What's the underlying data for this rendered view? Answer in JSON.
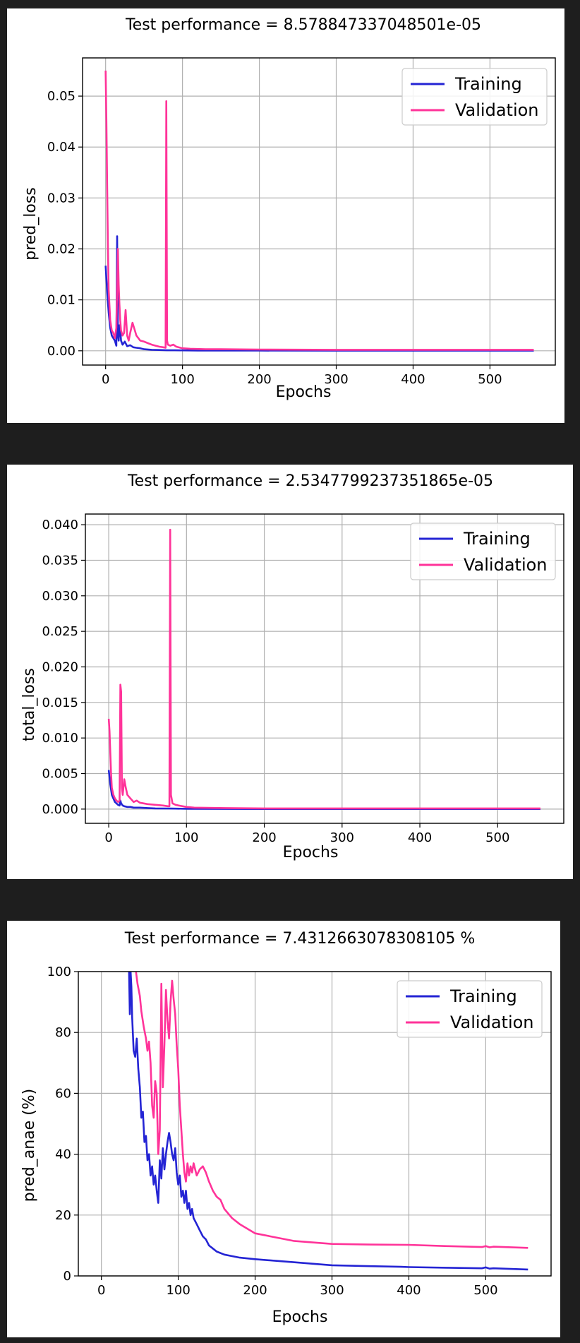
{
  "charts": [
    {
      "title": "Test performance = 8.578847337048501e-05",
      "xlabel": "Epochs",
      "ylabel": "pred_loss",
      "xticks": [
        "0",
        "100",
        "200",
        "300",
        "400",
        "500"
      ],
      "yticks": [
        "0.00",
        "0.01",
        "0.02",
        "0.03",
        "0.04",
        "0.05"
      ],
      "legend": [
        "Training",
        "Validation"
      ]
    },
    {
      "title": "Test performance = 2.5347799237351865e-05",
      "xlabel": "Epochs",
      "ylabel": "total_loss",
      "xticks": [
        "0",
        "100",
        "200",
        "300",
        "400",
        "500"
      ],
      "yticks": [
        "0.000",
        "0.005",
        "0.010",
        "0.015",
        "0.020",
        "0.025",
        "0.030",
        "0.035",
        "0.040"
      ],
      "legend": [
        "Training",
        "Validation"
      ]
    },
    {
      "title": "Test performance = 7.4312663078308105 %",
      "xlabel": "Epochs",
      "ylabel": "pred_anae (%)",
      "xticks": [
        "0",
        "100",
        "200",
        "300",
        "400",
        "500"
      ],
      "yticks": [
        "0",
        "20",
        "40",
        "60",
        "80",
        "100"
      ],
      "legend": [
        "Training",
        "Validation"
      ]
    }
  ],
  "colors": {
    "training": "#2424d4",
    "validation": "#ff3399",
    "grid": "#b0b0b0",
    "background": "#1e1e1e"
  },
  "chart_data": [
    {
      "type": "line",
      "title": "Test performance = 8.578847337048501e-05",
      "xlabel": "Epochs",
      "ylabel": "pred_loss",
      "xlim": [
        -30,
        585
      ],
      "ylim": [
        -0.0028,
        0.0575
      ],
      "xticks": [
        0,
        100,
        200,
        300,
        400,
        500
      ],
      "yticks": [
        0,
        0.01,
        0.02,
        0.03,
        0.04,
        0.05
      ],
      "grid": true,
      "legend": "top-right",
      "series": [
        {
          "name": "Training",
          "color": "#2424d4",
          "x": [
            0,
            2,
            4,
            6,
            8,
            10,
            12,
            14,
            15,
            16,
            17,
            18,
            19,
            20,
            22,
            25,
            28,
            32,
            36,
            40,
            45,
            50,
            60,
            70,
            80,
            90,
            100,
            120,
            150,
            200,
            300,
            400,
            500,
            557
          ],
          "y": [
            0.0167,
            0.0115,
            0.0075,
            0.0045,
            0.003,
            0.0025,
            0.002,
            0.001,
            0.0225,
            0.003,
            0.002,
            0.005,
            0.0045,
            0.002,
            0.0012,
            0.0018,
            0.0009,
            0.0011,
            0.0007,
            0.0006,
            0.0005,
            0.0003,
            0.0002,
            0.00015,
            0.0001,
            0.0001,
            8e-05,
            6e-05,
            5e-05,
            4e-05,
            3e-05,
            3e-05,
            3e-05,
            3e-05
          ]
        },
        {
          "name": "Validation",
          "color": "#ff3399",
          "x": [
            0,
            1,
            2,
            3,
            4,
            6,
            8,
            10,
            12,
            14,
            16,
            17,
            18,
            19,
            20,
            22,
            24,
            26,
            28,
            30,
            32,
            35,
            38,
            40,
            45,
            50,
            55,
            60,
            65,
            70,
            75,
            78,
            79,
            80,
            81,
            84,
            88,
            92,
            100,
            110,
            130,
            150,
            200,
            300,
            400,
            500,
            557
          ],
          "y": [
            0.055,
            0.045,
            0.032,
            0.02,
            0.012,
            0.006,
            0.004,
            0.0035,
            0.0025,
            0.0045,
            0.02,
            0.013,
            0.009,
            0.006,
            0.004,
            0.003,
            0.0035,
            0.008,
            0.003,
            0.002,
            0.0035,
            0.0055,
            0.004,
            0.003,
            0.002,
            0.0018,
            0.0015,
            0.0012,
            0.001,
            0.0008,
            0.0007,
            0.0006,
            0.049,
            0.002,
            0.0012,
            0.001,
            0.0012,
            0.0008,
            0.0005,
            0.0004,
            0.0003,
            0.0003,
            0.00025,
            0.0002,
            0.0002,
            0.0002,
            0.0002
          ]
        }
      ]
    },
    {
      "type": "line",
      "title": "Test performance = 2.5347799237351865e-05",
      "xlabel": "Epochs",
      "ylabel": "total_loss",
      "xlim": [
        -30,
        585
      ],
      "ylim": [
        -0.002,
        0.0415
      ],
      "xticks": [
        0,
        100,
        200,
        300,
        400,
        500
      ],
      "yticks": [
        0,
        0.005,
        0.01,
        0.015,
        0.02,
        0.025,
        0.03,
        0.035,
        0.04
      ],
      "grid": true,
      "legend": "top-right",
      "series": [
        {
          "name": "Training",
          "color": "#2424d4",
          "x": [
            0,
            2,
            4,
            6,
            8,
            10,
            12,
            14,
            15,
            16,
            18,
            20,
            24,
            28,
            32,
            40,
            50,
            60,
            80,
            100,
            150,
            200,
            300,
            400,
            500,
            555
          ],
          "y": [
            0.0055,
            0.0035,
            0.002,
            0.0015,
            0.001,
            0.0008,
            0.0006,
            0.0005,
            0.0012,
            0.0008,
            0.0005,
            0.0004,
            0.0003,
            0.0003,
            0.0002,
            0.0002,
            0.00015,
            0.0001,
            8e-05,
            5e-05,
            3e-05,
            2e-05,
            2e-05,
            2e-05,
            2e-05,
            2e-05
          ]
        },
        {
          "name": "Validation",
          "color": "#ff3399",
          "x": [
            0,
            1,
            2,
            3,
            4,
            6,
            8,
            10,
            12,
            14,
            15,
            16,
            17,
            18,
            20,
            22,
            24,
            28,
            32,
            36,
            40,
            50,
            60,
            70,
            76,
            78,
            79,
            80,
            82,
            86,
            90,
            100,
            110,
            150,
            200,
            300,
            400,
            500,
            555
          ],
          "y": [
            0.0127,
            0.011,
            0.008,
            0.005,
            0.003,
            0.002,
            0.0015,
            0.0012,
            0.001,
            0.0012,
            0.0175,
            0.0165,
            0.003,
            0.002,
            0.0042,
            0.003,
            0.002,
            0.0015,
            0.001,
            0.0012,
            0.0009,
            0.0007,
            0.0006,
            0.0005,
            0.0004,
            0.0004,
            0.0393,
            0.002,
            0.0008,
            0.0006,
            0.0005,
            0.0003,
            0.0002,
            0.00015,
            0.0001,
            0.0001,
            0.0001,
            0.0001,
            0.0001
          ]
        }
      ]
    },
    {
      "type": "line",
      "title": "Test performance = 7.4312663078308105 %",
      "xlabel": "Epochs",
      "ylabel": "pred_anae (%)",
      "xlim": [
        -30,
        585
      ],
      "ylim": [
        0,
        100
      ],
      "xticks": [
        0,
        100,
        200,
        300,
        400,
        500
      ],
      "yticks": [
        0,
        20,
        40,
        60,
        80,
        100
      ],
      "grid": true,
      "legend": "top-right",
      "series": [
        {
          "name": "Training",
          "color": "#2424d4",
          "x": [
            36,
            37,
            38,
            39,
            40,
            42,
            44,
            46,
            48,
            50,
            52,
            54,
            56,
            58,
            60,
            62,
            64,
            66,
            68,
            70,
            72,
            74,
            76,
            78,
            80,
            82,
            84,
            86,
            88,
            90,
            92,
            94,
            96,
            98,
            100,
            102,
            104,
            106,
            108,
            110,
            112,
            114,
            116,
            118,
            120,
            124,
            128,
            132,
            136,
            140,
            145,
            150,
            160,
            170,
            180,
            200,
            250,
            300,
            350,
            390,
            400,
            450,
            495,
            500,
            505,
            510,
            555
          ],
          "y": [
            100,
            86,
            100,
            95,
            85,
            74,
            72,
            78,
            68,
            62,
            52,
            54,
            44,
            46,
            38,
            40,
            33,
            36,
            30,
            33,
            28,
            24,
            38,
            32,
            42,
            35,
            40,
            44,
            47,
            44,
            40,
            38,
            42,
            34,
            30,
            33,
            26,
            28,
            24,
            28,
            22,
            24,
            20,
            22,
            19,
            17,
            15,
            13,
            12,
            10,
            9,
            8,
            7,
            6.5,
            6,
            5.5,
            4.5,
            3.5,
            3.2,
            3.0,
            2.9,
            2.7,
            2.5,
            2.8,
            2.4,
            2.5,
            2.1
          ]
        },
        {
          "name": "Validation",
          "color": "#ff3399",
          "x": [
            45,
            47,
            50,
            52,
            55,
            58,
            60,
            62,
            64,
            66,
            68,
            70,
            72,
            74,
            76,
            78,
            80,
            82,
            84,
            86,
            88,
            90,
            92,
            94,
            96,
            98,
            100,
            102,
            104,
            106,
            108,
            110,
            112,
            114,
            116,
            118,
            120,
            124,
            128,
            132,
            136,
            140,
            145,
            150,
            155,
            160,
            170,
            180,
            200,
            250,
            300,
            350,
            400,
            450,
            495,
            500,
            505,
            510,
            555
          ],
          "y": [
            100,
            96,
            92,
            87,
            82,
            78,
            74,
            77,
            70,
            56,
            52,
            64,
            60,
            40,
            48,
            96,
            62,
            76,
            94,
            84,
            78,
            90,
            97,
            91,
            86,
            76,
            68,
            56,
            48,
            40,
            34,
            31,
            37,
            33,
            36,
            34,
            37,
            33,
            35,
            36,
            34,
            31,
            28,
            26,
            25,
            22,
            19,
            17,
            14,
            11.5,
            10.5,
            10.3,
            10.2,
            9.8,
            9.5,
            9.8,
            9.4,
            9.6,
            9.2
          ]
        }
      ]
    }
  ]
}
